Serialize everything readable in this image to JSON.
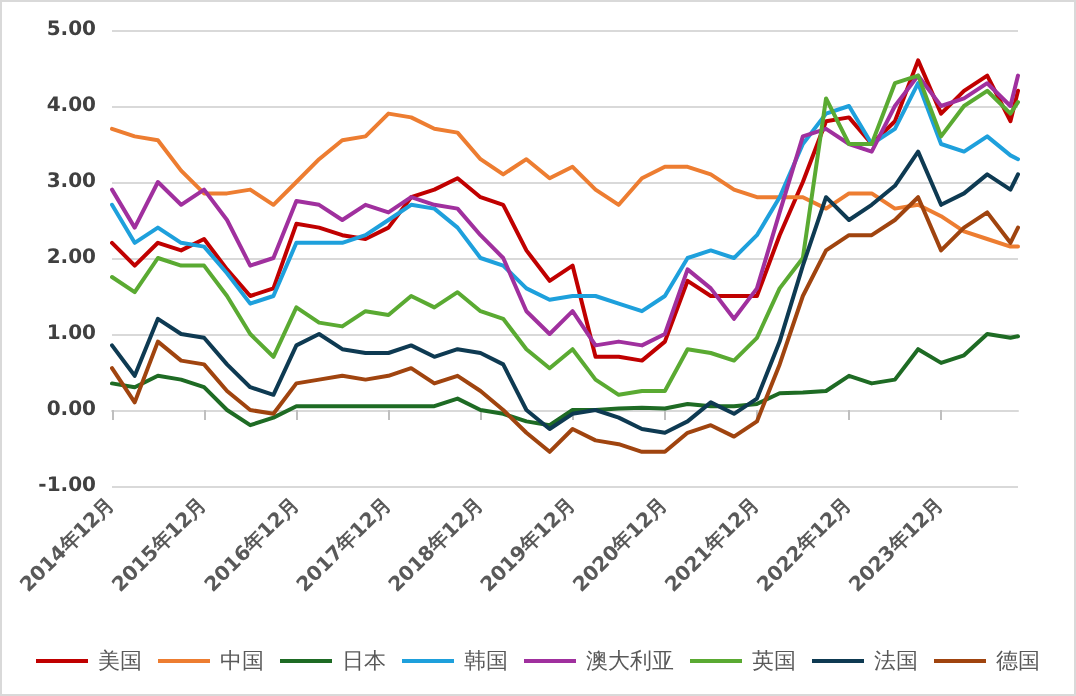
{
  "chart_data": {
    "type": "line",
    "x": [
      "2014-12",
      "2015-03",
      "2015-06",
      "2015-09",
      "2015-12",
      "2016-03",
      "2016-06",
      "2016-09",
      "2016-12",
      "2017-03",
      "2017-06",
      "2017-09",
      "2017-12",
      "2018-03",
      "2018-06",
      "2018-09",
      "2018-12",
      "2019-03",
      "2019-06",
      "2019-09",
      "2019-12",
      "2020-03",
      "2020-06",
      "2020-09",
      "2020-12",
      "2021-03",
      "2021-06",
      "2021-09",
      "2021-12",
      "2022-03",
      "2022-06",
      "2022-09",
      "2022-12",
      "2023-03",
      "2023-06",
      "2023-09",
      "2023-12",
      "2024-03",
      "2024-06",
      "2024-09",
      "2024-10"
    ],
    "series": [
      {
        "name": "美国",
        "color": "#c00000",
        "values": [
          2.2,
          1.9,
          2.2,
          2.1,
          2.25,
          1.85,
          1.5,
          1.6,
          2.45,
          2.4,
          2.3,
          2.25,
          2.4,
          2.8,
          2.9,
          3.05,
          2.8,
          2.7,
          2.1,
          1.7,
          1.9,
          0.7,
          0.7,
          0.65,
          0.9,
          1.7,
          1.5,
          1.5,
          1.5,
          2.3,
          3.0,
          3.8,
          3.85,
          3.5,
          3.8,
          4.6,
          3.9,
          4.2,
          4.4,
          3.8,
          4.2
        ]
      },
      {
        "name": "中国",
        "color": "#ed7d31",
        "values": [
          3.7,
          3.6,
          3.55,
          3.15,
          2.85,
          2.85,
          2.9,
          2.7,
          3.0,
          3.3,
          3.55,
          3.6,
          3.9,
          3.85,
          3.7,
          3.65,
          3.3,
          3.1,
          3.3,
          3.05,
          3.2,
          2.9,
          2.7,
          3.05,
          3.2,
          3.2,
          3.1,
          2.9,
          2.8,
          2.8,
          2.8,
          2.65,
          2.85,
          2.85,
          2.65,
          2.7,
          2.55,
          2.35,
          2.25,
          2.15,
          2.15
        ]
      },
      {
        "name": "日本",
        "color": "#1e6b24",
        "values": [
          0.35,
          0.3,
          0.45,
          0.4,
          0.3,
          0.0,
          -0.2,
          -0.1,
          0.05,
          0.05,
          0.05,
          0.05,
          0.05,
          0.05,
          0.05,
          0.15,
          0.0,
          -0.05,
          -0.15,
          -0.2,
          0.0,
          0.0,
          0.02,
          0.03,
          0.02,
          0.08,
          0.05,
          0.05,
          0.08,
          0.22,
          0.23,
          0.25,
          0.45,
          0.35,
          0.4,
          0.8,
          0.62,
          0.72,
          1.0,
          0.95,
          0.97
        ]
      },
      {
        "name": "韩国",
        "color": "#1ea0dc",
        "values": [
          2.7,
          2.2,
          2.4,
          2.2,
          2.15,
          1.8,
          1.4,
          1.5,
          2.2,
          2.2,
          2.2,
          2.3,
          2.5,
          2.7,
          2.65,
          2.4,
          2.0,
          1.9,
          1.6,
          1.45,
          1.5,
          1.5,
          1.4,
          1.3,
          1.5,
          2.0,
          2.1,
          2.0,
          2.3,
          2.8,
          3.5,
          3.9,
          4.0,
          3.5,
          3.7,
          4.3,
          3.5,
          3.4,
          3.6,
          3.35,
          3.3
        ]
      },
      {
        "name": "澳大利亚",
        "color": "#a0309e",
        "values": [
          2.9,
          2.4,
          3.0,
          2.7,
          2.9,
          2.5,
          1.9,
          2.0,
          2.75,
          2.7,
          2.5,
          2.7,
          2.6,
          2.8,
          2.7,
          2.65,
          2.3,
          2.0,
          1.3,
          1.0,
          1.3,
          0.85,
          0.9,
          0.85,
          1.0,
          1.85,
          1.6,
          1.2,
          1.6,
          2.6,
          3.6,
          3.7,
          3.5,
          3.4,
          4.0,
          4.4,
          4.0,
          4.1,
          4.3,
          4.0,
          4.4
        ]
      },
      {
        "name": "英国",
        "color": "#5aaa32",
        "values": [
          1.75,
          1.55,
          2.0,
          1.9,
          1.9,
          1.5,
          1.0,
          0.7,
          1.35,
          1.15,
          1.1,
          1.3,
          1.25,
          1.5,
          1.35,
          1.55,
          1.3,
          1.2,
          0.8,
          0.55,
          0.8,
          0.4,
          0.2,
          0.25,
          0.25,
          0.8,
          0.75,
          0.65,
          0.95,
          1.6,
          2.0,
          4.1,
          3.5,
          3.5,
          4.3,
          4.4,
          3.6,
          4.0,
          4.2,
          3.9,
          4.05
        ]
      },
      {
        "name": "法国",
        "color": "#0e3a52",
        "values": [
          0.85,
          0.45,
          1.2,
          1.0,
          0.95,
          0.6,
          0.3,
          0.2,
          0.85,
          1.0,
          0.8,
          0.75,
          0.75,
          0.85,
          0.7,
          0.8,
          0.75,
          0.6,
          0.0,
          -0.25,
          -0.05,
          0.0,
          -0.1,
          -0.25,
          -0.3,
          -0.15,
          0.1,
          -0.05,
          0.15,
          0.9,
          1.9,
          2.8,
          2.5,
          2.7,
          2.95,
          3.4,
          2.7,
          2.85,
          3.1,
          2.9,
          3.1
        ]
      },
      {
        "name": "德国",
        "color": "#a0440f",
        "values": [
          0.55,
          0.1,
          0.9,
          0.65,
          0.6,
          0.25,
          0.0,
          -0.05,
          0.35,
          0.4,
          0.45,
          0.4,
          0.45,
          0.55,
          0.35,
          0.45,
          0.25,
          0.0,
          -0.3,
          -0.55,
          -0.25,
          -0.4,
          -0.45,
          -0.55,
          -0.55,
          -0.3,
          -0.2,
          -0.35,
          -0.15,
          0.6,
          1.5,
          2.1,
          2.3,
          2.3,
          2.5,
          2.8,
          2.1,
          2.4,
          2.6,
          2.2,
          2.4
        ]
      }
    ],
    "xlim": [
      "2014-12",
      "2024-10"
    ],
    "xticks": [
      {
        "value": "2014-12",
        "label": "2014年12月"
      },
      {
        "value": "2015-12",
        "label": "2015年12月"
      },
      {
        "value": "2016-12",
        "label": "2016年12月"
      },
      {
        "value": "2017-12",
        "label": "2017年12月"
      },
      {
        "value": "2018-12",
        "label": "2018年12月"
      },
      {
        "value": "2019-12",
        "label": "2019年12月"
      },
      {
        "value": "2020-12",
        "label": "2020年12月"
      },
      {
        "value": "2021-12",
        "label": "2021年12月"
      },
      {
        "value": "2022-12",
        "label": "2022年12月"
      },
      {
        "value": "2023-12",
        "label": "2023年12月"
      }
    ],
    "ylim": [
      -1,
      5
    ],
    "yticks": [
      {
        "value": -1,
        "label": "-1.00"
      },
      {
        "value": 0,
        "label": "0.00"
      },
      {
        "value": 1,
        "label": "1.00"
      },
      {
        "value": 2,
        "label": "2.00"
      },
      {
        "value": 3,
        "label": "3.00"
      },
      {
        "value": 4,
        "label": "4.00"
      },
      {
        "value": 5,
        "label": "5.00"
      }
    ],
    "grid": "y",
    "legend": "bottom",
    "marker": "none",
    "line_style": "solid"
  }
}
